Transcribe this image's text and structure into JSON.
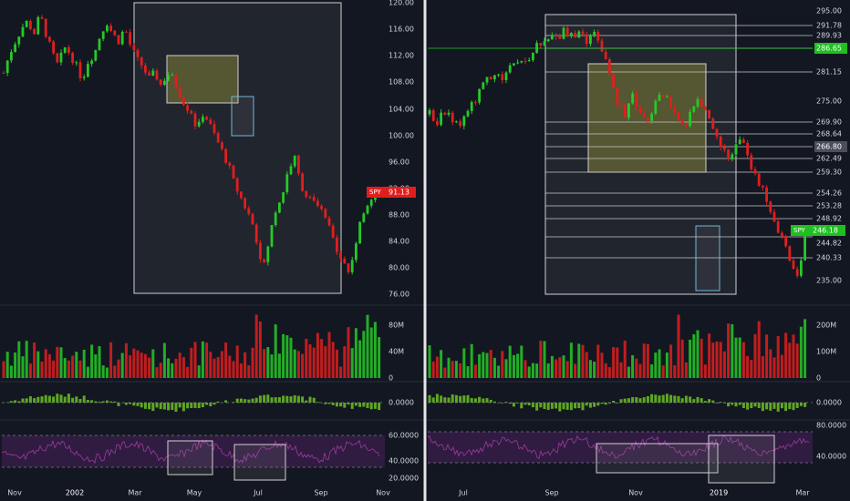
{
  "colors": {
    "background": "#131722",
    "up": "#26c926",
    "down": "#e01e1e",
    "divider": "#e6e6e6",
    "grid_text": "#d1d4dc",
    "box_stroke": "#d0d0d0",
    "box_fill_yellow": "#b8b23a",
    "macd_positive": "#5fa81f",
    "rsi_line": "#9c3aa0",
    "rsi_band": "#3d1f4f",
    "label_red": "#e01e1e",
    "label_green": "#1fbf1f"
  },
  "chart_data": [
    {
      "type": "candlestick",
      "panel": "left",
      "ticker_label": "SPY",
      "last_price_label": "91.13",
      "price_ticks": [
        "76.00",
        "80.00",
        "84.00",
        "88.00",
        "92.00",
        "96.00",
        "100.00",
        "104.00",
        "108.00",
        "112.00",
        "116.00",
        "120.00"
      ],
      "ylim": [
        74,
        120
      ],
      "volume_ticks": [
        "0",
        "40M",
        "80M"
      ],
      "macd_ticks": [
        "0.0000"
      ],
      "rsi_ticks": [
        "20.0000",
        "40.0000",
        "60.0000"
      ],
      "rsi_band": [
        30,
        70
      ],
      "x_ticks": [
        "Nov",
        "2002",
        "Mar",
        "May",
        "Jul",
        "Sep",
        "Nov"
      ],
      "approx_closes": [
        109,
        112,
        114,
        116,
        117,
        115,
        118,
        115,
        112,
        110,
        113,
        112,
        110,
        108,
        111,
        112,
        115,
        117,
        115,
        114,
        116,
        113,
        111,
        110,
        108,
        109,
        107,
        109,
        108,
        106,
        104,
        103,
        100,
        103,
        101,
        99,
        97,
        95,
        92,
        90,
        88,
        86,
        82,
        79,
        84,
        88,
        90,
        94,
        96,
        92,
        90,
        89,
        88,
        87,
        84,
        82,
        80,
        78,
        82,
        86,
        89,
        90,
        91
      ]
    },
    {
      "type": "candlestick",
      "panel": "right",
      "ticker_label": "SPY",
      "last_price_label": "246.18",
      "price_ticks": [
        "235.00",
        "240.33",
        "244.82",
        "248.92",
        "253.28",
        "254.26",
        "259.30",
        "262.49",
        "266.80",
        "268.64",
        "269.90",
        "275.00",
        "281.15",
        "286.65",
        "289.93",
        "291.78",
        "295.00"
      ],
      "ylim": [
        231,
        297
      ],
      "volume_ticks": [
        "0",
        "100M",
        "200M"
      ],
      "macd_ticks": [
        "0.0000"
      ],
      "rsi_ticks": [
        "40.0000",
        "80.0000"
      ],
      "rsi_band": [
        30,
        70
      ],
      "x_ticks": [
        "Jul",
        "Sep",
        "Nov",
        "2019",
        "Mar"
      ],
      "approx_closes": [
        272,
        270,
        273,
        271,
        269,
        272,
        275,
        278,
        280,
        281,
        280,
        283,
        285,
        284,
        287,
        288,
        290,
        289,
        291,
        289,
        290,
        288,
        290,
        286,
        281,
        275,
        272,
        276,
        272,
        270,
        275,
        277,
        274,
        271,
        269,
        273,
        275,
        272,
        268,
        265,
        262,
        266,
        265,
        259,
        256,
        253,
        248,
        244,
        240,
        235,
        246
      ]
    }
  ]
}
